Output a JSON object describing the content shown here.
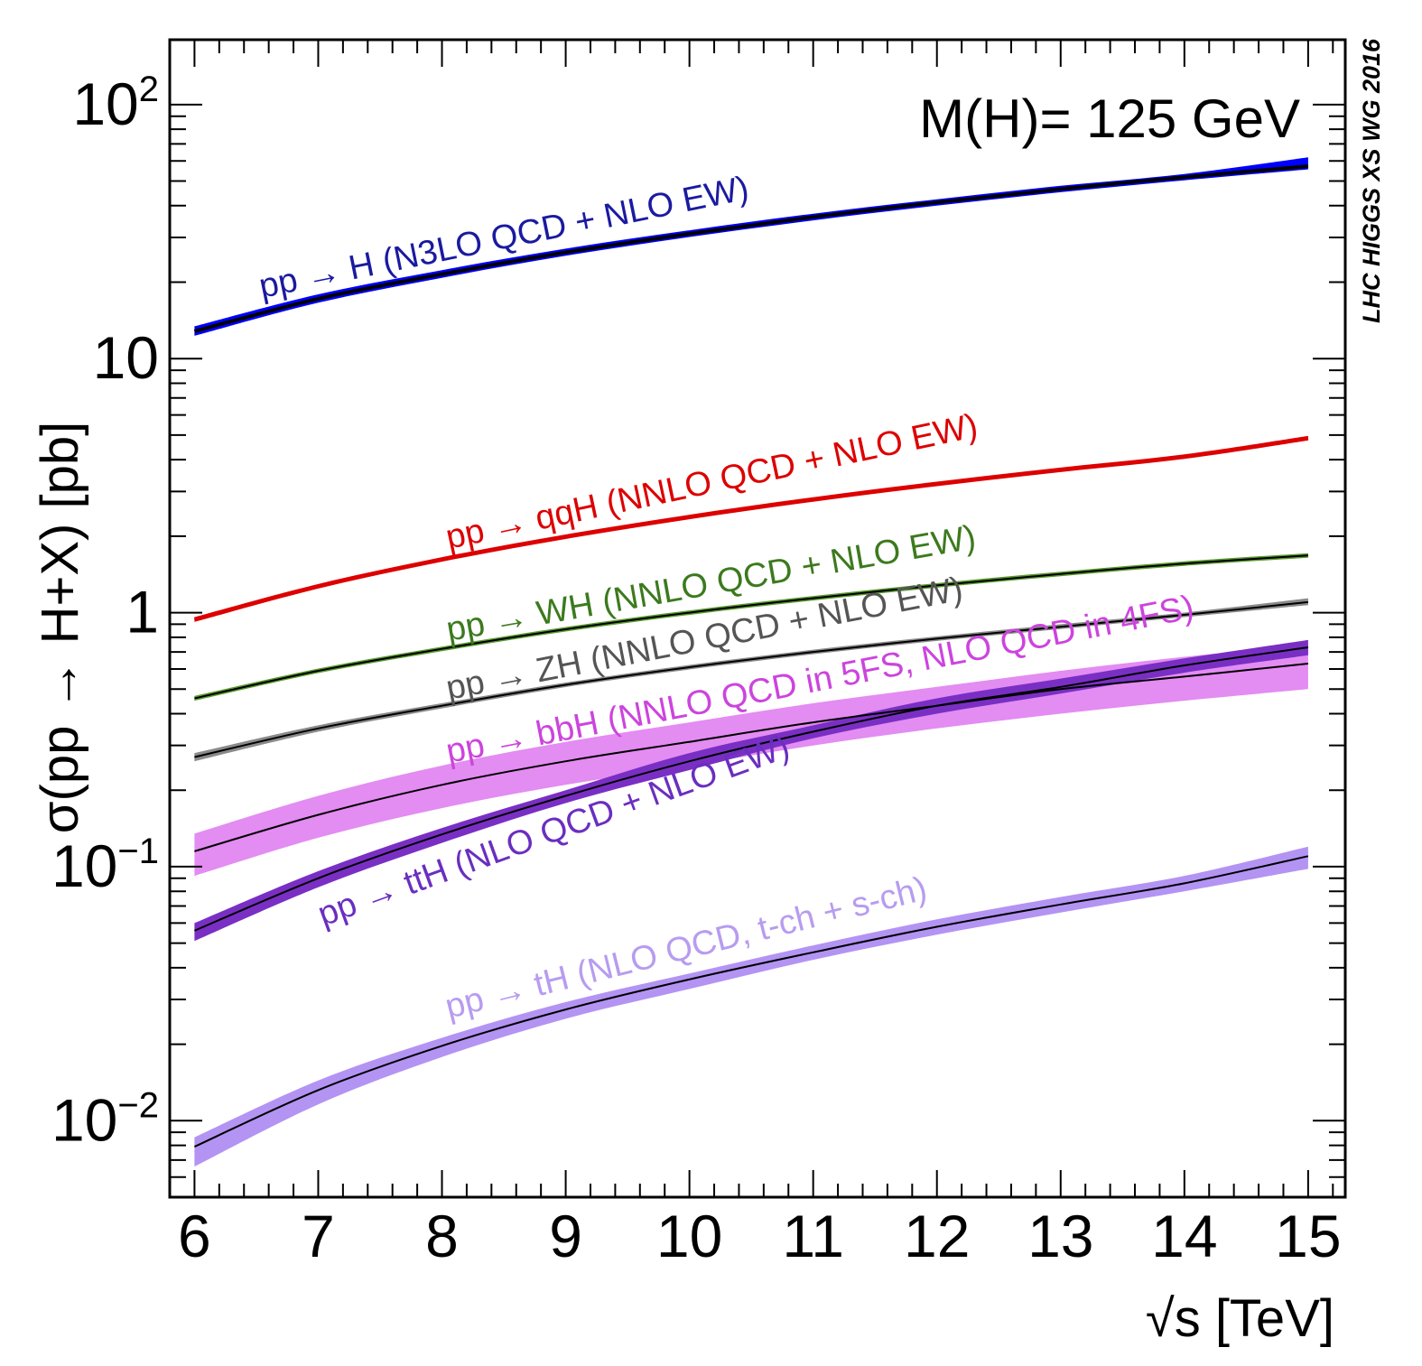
{
  "chart_data": {
    "type": "line",
    "title": "",
    "annotation": "M(H)= 125 GeV",
    "watermark": "LHC HIGGS XS WG 2016",
    "xlabel": "√s [TeV]",
    "ylabel": "σ(pp → H+X) [pb]",
    "xlim": [
      5.8,
      15.3
    ],
    "ylim": [
      0.005,
      180
    ],
    "yscale": "log",
    "grid": false,
    "x_ticks": [
      6,
      7,
      8,
      9,
      10,
      11,
      12,
      13,
      14,
      15
    ],
    "y_ticks": [
      {
        "value": 100,
        "base": "10",
        "exp": "2"
      },
      {
        "value": 10,
        "base": "10",
        "exp": ""
      },
      {
        "value": 1,
        "base": "1",
        "exp": ""
      },
      {
        "value": 0.1,
        "base": "10",
        "exp": "−1"
      },
      {
        "value": 0.01,
        "base": "10",
        "exp": "−2"
      }
    ],
    "x": [
      6,
      7,
      8,
      9,
      10,
      11,
      12,
      13,
      14,
      15
    ],
    "series": [
      {
        "name": "pp → H (N3LO QCD + NLO EW)",
        "color": "#1a1aa0",
        "band_color": "#0000ff",
        "line_color": "#000000",
        "central": [
          12.8,
          17.2,
          21.5,
          26.2,
          31.0,
          36.1,
          41.2,
          46.5,
          51.8,
          57.2
        ],
        "low": [
          12.3,
          16.6,
          20.8,
          25.4,
          30.1,
          35.0,
          40.0,
          45.2,
          50.4,
          55.7
        ],
        "high": [
          13.4,
          17.9,
          22.3,
          27.1,
          32.0,
          37.2,
          42.4,
          47.9,
          53.3,
          62.0
        ]
      },
      {
        "name": "pp → qqH (NNLO QCD + NLO EW)",
        "color": "#dd0000",
        "band_color": "#dd0000",
        "line_color": "#dd0000",
        "central": [
          0.94,
          1.27,
          1.62,
          1.99,
          2.38,
          2.79,
          3.21,
          3.65,
          4.11,
          4.86
        ],
        "low": [
          0.92,
          1.25,
          1.6,
          1.96,
          2.35,
          2.76,
          3.18,
          3.62,
          4.07,
          4.8
        ],
        "high": [
          0.96,
          1.29,
          1.64,
          2.02,
          2.41,
          2.82,
          3.24,
          3.68,
          4.15,
          4.92
        ]
      },
      {
        "name": "pp → WH (NNLO QCD + NLO EW)",
        "color": "#3c7a1e",
        "band_color": "#5a9a30",
        "line_color": "#000000",
        "central": [
          0.46,
          0.59,
          0.72,
          0.86,
          1.0,
          1.14,
          1.28,
          1.42,
          1.56,
          1.68
        ],
        "low": [
          0.45,
          0.58,
          0.71,
          0.85,
          0.99,
          1.13,
          1.27,
          1.41,
          1.55,
          1.66
        ],
        "high": [
          0.47,
          0.6,
          0.73,
          0.87,
          1.01,
          1.15,
          1.29,
          1.43,
          1.57,
          1.7
        ]
      },
      {
        "name": "pp → ZH (NNLO QCD + NLO EW)",
        "color": "#555555",
        "band_color": "#8a8a8a",
        "line_color": "#000000",
        "central": [
          0.27,
          0.35,
          0.43,
          0.52,
          0.61,
          0.7,
          0.79,
          0.88,
          0.98,
          1.1
        ],
        "low": [
          0.26,
          0.34,
          0.42,
          0.51,
          0.6,
          0.69,
          0.78,
          0.87,
          0.97,
          1.07
        ],
        "high": [
          0.28,
          0.36,
          0.44,
          0.53,
          0.62,
          0.71,
          0.8,
          0.9,
          1.0,
          1.14
        ]
      },
      {
        "name": "pp → bbH (NNLO QCD in 5FS, NLO QCD in 4FS)",
        "color": "#cc44dd",
        "band_color": "#e38cf2",
        "line_color": "#000000",
        "central": [
          0.115,
          0.16,
          0.21,
          0.26,
          0.31,
          0.37,
          0.43,
          0.5,
          0.56,
          0.63
        ],
        "low": [
          0.092,
          0.13,
          0.17,
          0.21,
          0.25,
          0.3,
          0.35,
          0.4,
          0.45,
          0.5
        ],
        "high": [
          0.135,
          0.19,
          0.25,
          0.31,
          0.37,
          0.44,
          0.51,
          0.59,
          0.67,
          0.75
        ]
      },
      {
        "name": "pp → ttH (NLO QCD + NLO EW)",
        "color": "#6a2ec0",
        "band_color": "#7a2fc4",
        "line_color": "#000000",
        "central": [
          0.056,
          0.09,
          0.134,
          0.19,
          0.26,
          0.34,
          0.43,
          0.51,
          0.62,
          0.73
        ],
        "low": [
          0.051,
          0.083,
          0.124,
          0.178,
          0.24,
          0.32,
          0.4,
          0.48,
          0.58,
          0.68
        ],
        "high": [
          0.06,
          0.096,
          0.142,
          0.2,
          0.28,
          0.36,
          0.46,
          0.55,
          0.66,
          0.78
        ]
      },
      {
        "name": "pp → tH (NLO QCD, t-ch + s-ch)",
        "color": "#b79cf0",
        "band_color": "#b394f3",
        "line_color": "#000000",
        "central": [
          0.0079,
          0.0132,
          0.0197,
          0.0274,
          0.036,
          0.046,
          0.058,
          0.071,
          0.086,
          0.11
        ],
        "low": [
          0.0066,
          0.0116,
          0.0178,
          0.0252,
          0.033,
          0.043,
          0.054,
          0.066,
          0.08,
          0.098
        ],
        "high": [
          0.0086,
          0.0144,
          0.0212,
          0.0293,
          0.038,
          0.049,
          0.062,
          0.076,
          0.092,
          0.12
        ]
      }
    ]
  }
}
